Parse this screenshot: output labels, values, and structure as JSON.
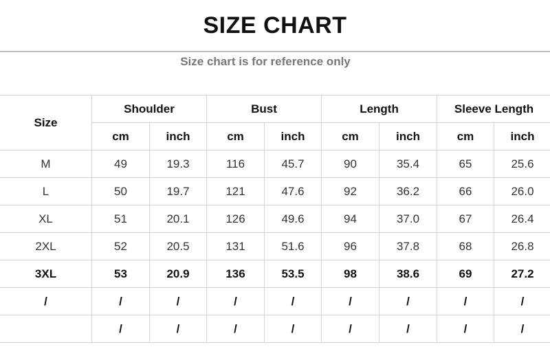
{
  "title": "SIZE CHART",
  "subtitle": "Size chart is for reference only",
  "table": {
    "size_header": "Size",
    "groups": [
      "Shoulder",
      "Bust",
      "Length",
      "Sleeve Length"
    ],
    "units": [
      "cm",
      "inch"
    ],
    "rows": [
      [
        "M",
        "49",
        "19.3",
        "116",
        "45.7",
        "90",
        "35.4",
        "65",
        "25.6"
      ],
      [
        "L",
        "50",
        "19.7",
        "121",
        "47.6",
        "92",
        "36.2",
        "66",
        "26.0"
      ],
      [
        "XL",
        "51",
        "20.1",
        "126",
        "49.6",
        "94",
        "37.0",
        "67",
        "26.4"
      ],
      [
        "2XL",
        "52",
        "20.5",
        "131",
        "51.6",
        "96",
        "37.8",
        "68",
        "26.8"
      ],
      [
        "3XL",
        "53",
        "20.9",
        "136",
        "53.5",
        "98",
        "38.6",
        "69",
        "27.2"
      ],
      [
        "/",
        "/",
        "/",
        "/",
        "/",
        "/",
        "/",
        "/",
        "/"
      ],
      [
        "",
        "/",
        "/",
        "/",
        "/",
        "/",
        "/",
        "/",
        "/"
      ]
    ],
    "bold_rows": [
      4,
      5,
      6
    ]
  }
}
